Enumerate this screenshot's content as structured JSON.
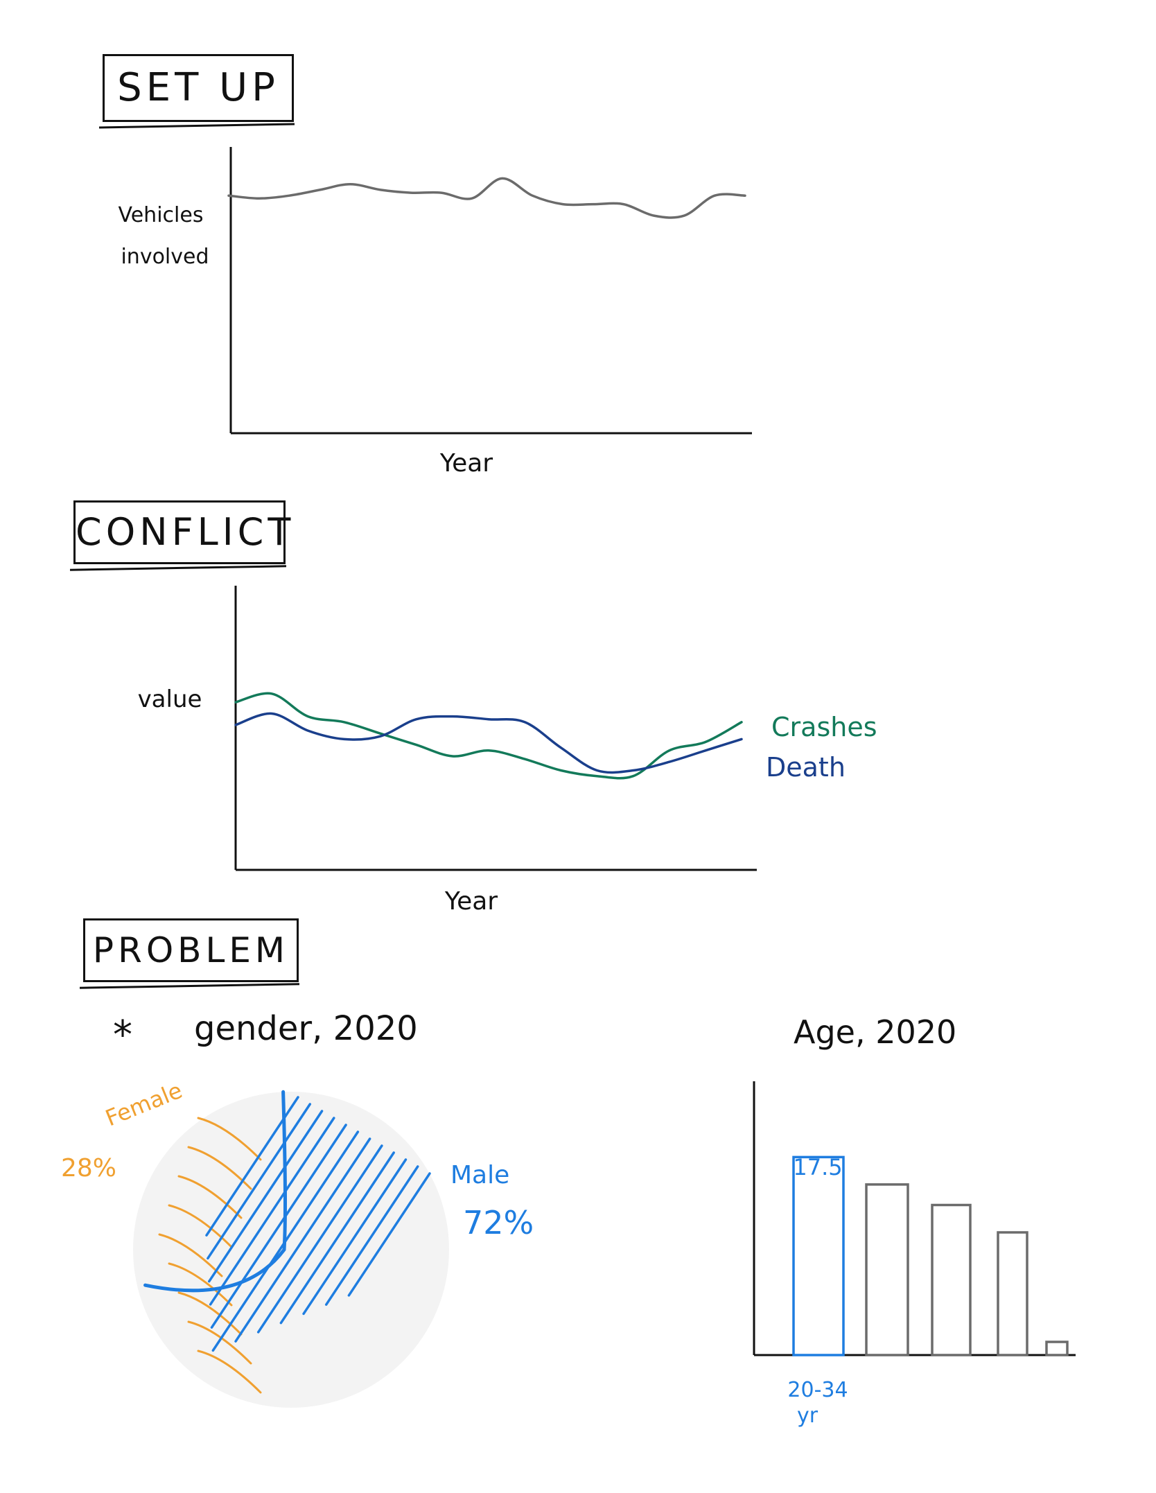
{
  "sections": {
    "setup": {
      "title": "SET UP"
    },
    "conflict": {
      "title": "CONFLICT"
    },
    "problem": {
      "title": "PROBLEM"
    }
  },
  "colors": {
    "gray": "#6b6b6b",
    "green": "#137a5a",
    "navy": "#1a3f8c",
    "orange": "#f0a030",
    "blue": "#1e7de0",
    "black": "#111111"
  },
  "chart_data": [
    {
      "type": "line",
      "xlabel": "Year",
      "ylabel": "Vehicles involved",
      "ylim": [
        0,
        100
      ],
      "series": [
        {
          "values": [
            83,
            82,
            83,
            85,
            87,
            85,
            84,
            84,
            82,
            89,
            83,
            80,
            80,
            80,
            76,
            76,
            83,
            83
          ]
        }
      ]
    },
    {
      "type": "line",
      "xlabel": "Year",
      "ylabel": "value",
      "ylim": [
        0,
        100
      ],
      "series": [
        {
          "name": "Crashes",
          "values": [
            59,
            62,
            54,
            52,
            48,
            44,
            40,
            42,
            39,
            35,
            33,
            33,
            42,
            45,
            52
          ]
        },
        {
          "name": "Death",
          "values": [
            51,
            55,
            49,
            46,
            47,
            53,
            54,
            53,
            52,
            43,
            35,
            35,
            38,
            42,
            46
          ]
        }
      ]
    },
    {
      "type": "pie",
      "title": "gender, 2020",
      "bullet": "*",
      "slices": [
        {
          "label": "Female",
          "value_label": "28%",
          "value": 28
        },
        {
          "label": "Male",
          "value_label": "72%",
          "value": 72
        }
      ]
    },
    {
      "type": "bar",
      "title": "Age, 2020",
      "highlight_value_label": "17.5",
      "highlight_category": [
        "20-34",
        "yr"
      ],
      "values": [
        17.5,
        15.5,
        14,
        12,
        4
      ],
      "ylim": [
        0,
        20
      ]
    }
  ]
}
